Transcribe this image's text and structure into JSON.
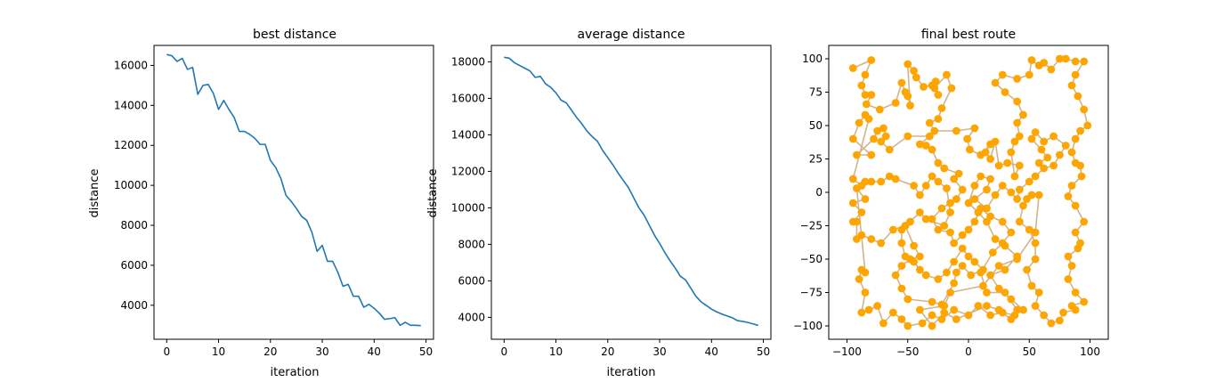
{
  "figure": {
    "background": "#ffffff"
  },
  "chart_data": [
    {
      "type": "line",
      "title": "best distance",
      "xlabel": "iteration",
      "ylabel": "distance",
      "xlim": [
        -2.45,
        51.45
      ],
      "ylim": [
        2300,
        17000
      ],
      "xticks": [
        0,
        10,
        20,
        30,
        40,
        50
      ],
      "yticks": [
        4000,
        6000,
        8000,
        10000,
        12000,
        14000,
        16000
      ],
      "grid": false,
      "color": "#1f77b4",
      "series": [
        {
          "x": [
            0,
            1,
            2,
            3,
            4,
            5,
            6,
            7,
            8,
            9,
            10,
            11,
            12,
            13,
            14,
            15,
            16,
            17,
            18,
            19,
            20,
            21,
            22,
            23,
            24,
            25,
            26,
            27,
            28,
            29,
            30,
            31,
            32,
            33,
            34,
            35,
            36,
            37,
            38,
            39,
            40,
            41,
            42,
            43,
            44,
            45,
            46,
            47,
            48,
            49
          ],
          "values": [
            16550,
            16480,
            16200,
            16350,
            15800,
            15900,
            14550,
            15000,
            15050,
            14600,
            13800,
            14250,
            13800,
            13400,
            12700,
            12700,
            12550,
            12350,
            12050,
            12050,
            11250,
            10900,
            10350,
            9500,
            9200,
            8850,
            8450,
            8250,
            7650,
            6700,
            7000,
            6200,
            6200,
            5650,
            4950,
            5050,
            4450,
            4450,
            3900,
            4050,
            3850,
            3600,
            3300,
            3330,
            3380,
            3000,
            3150,
            3000,
            3000,
            2980
          ]
        }
      ]
    },
    {
      "type": "line",
      "title": "average distance",
      "xlabel": "iteration",
      "ylabel": "distance",
      "xlim": [
        -2.45,
        51.45
      ],
      "ylim": [
        2800,
        18900
      ],
      "xticks": [
        0,
        10,
        20,
        30,
        40,
        50
      ],
      "yticks": [
        4000,
        6000,
        8000,
        10000,
        12000,
        14000,
        16000,
        18000
      ],
      "grid": false,
      "color": "#1f77b4",
      "series": [
        {
          "x": [
            0,
            1,
            2,
            3,
            4,
            5,
            6,
            7,
            8,
            9,
            10,
            11,
            12,
            13,
            14,
            15,
            16,
            17,
            18,
            19,
            20,
            21,
            22,
            23,
            24,
            25,
            26,
            27,
            28,
            29,
            30,
            31,
            32,
            33,
            34,
            35,
            36,
            37,
            38,
            39,
            40,
            41,
            42,
            43,
            44,
            45,
            46,
            47,
            48,
            49
          ],
          "values": [
            18250,
            18200,
            17950,
            17800,
            17650,
            17500,
            17150,
            17200,
            16800,
            16600,
            16300,
            15900,
            15750,
            15350,
            14950,
            14600,
            14200,
            13900,
            13650,
            13150,
            12750,
            12350,
            11900,
            11500,
            11100,
            10550,
            10000,
            9600,
            9050,
            8500,
            8050,
            7550,
            7100,
            6700,
            6250,
            6050,
            5600,
            5150,
            4850,
            4650,
            4450,
            4300,
            4180,
            4080,
            3980,
            3820,
            3780,
            3720,
            3640,
            3560
          ]
        }
      ]
    },
    {
      "type": "scatter",
      "title": "final best route",
      "xlabel": "",
      "ylabel": "",
      "xlim": [
        -115,
        115
      ],
      "ylim": [
        -110,
        110
      ],
      "xticks": [
        -100,
        -50,
        0,
        50,
        100
      ],
      "yticks": [
        -100,
        -75,
        -50,
        -25,
        0,
        25,
        50,
        75,
        100
      ],
      "grid": false,
      "point_color": "#ffa500",
      "route_color": "#d2b48c",
      "route": [
        [
          -95,
          93
        ],
        [
          -80,
          99
        ],
        [
          -85,
          88
        ],
        [
          -88,
          80
        ],
        [
          -85,
          73
        ],
        [
          -80,
          73
        ],
        [
          -84,
          66
        ],
        [
          -73,
          62
        ],
        [
          -60,
          67
        ],
        [
          -55,
          82
        ],
        [
          -52,
          75
        ],
        [
          -50,
          72
        ],
        [
          -48,
          65
        ],
        [
          -50,
          96
        ],
        [
          -45,
          91
        ],
        [
          -43,
          86
        ],
        [
          -37,
          79
        ],
        [
          -30,
          80
        ],
        [
          -27,
          83
        ],
        [
          -25,
          73
        ],
        [
          -28,
          78
        ],
        [
          -18,
          88
        ],
        [
          -14,
          78
        ],
        [
          -22,
          63
        ],
        [
          -25,
          55
        ],
        [
          -32,
          52
        ],
        [
          -28,
          46
        ],
        [
          -10,
          46
        ],
        [
          5,
          48
        ],
        [
          -1,
          40
        ],
        [
          1,
          32
        ],
        [
          10,
          28
        ],
        [
          18,
          36
        ],
        [
          14,
          30
        ],
        [
          18,
          25
        ],
        [
          22,
          38
        ],
        [
          25,
          20
        ],
        [
          32,
          22
        ],
        [
          42,
          20
        ],
        [
          38,
          12
        ],
        [
          35,
          30
        ],
        [
          38,
          38
        ],
        [
          42,
          42
        ],
        [
          40,
          52
        ],
        [
          45,
          58
        ],
        [
          40,
          68
        ],
        [
          30,
          75
        ],
        [
          22,
          82
        ],
        [
          28,
          88
        ],
        [
          40,
          85
        ],
        [
          50,
          88
        ],
        [
          52,
          99
        ],
        [
          58,
          95
        ],
        [
          62,
          97
        ],
        [
          68,
          92
        ],
        [
          75,
          100
        ],
        [
          80,
          100
        ],
        [
          88,
          98
        ],
        [
          95,
          98
        ],
        [
          88,
          88
        ],
        [
          85,
          80
        ],
        [
          90,
          72
        ],
        [
          95,
          62
        ],
        [
          98,
          50
        ],
        [
          92,
          46
        ],
        [
          88,
          40
        ],
        [
          85,
          30
        ],
        [
          88,
          22
        ],
        [
          92,
          20
        ],
        [
          93,
          12
        ],
        [
          85,
          5
        ],
        [
          82,
          -3
        ],
        [
          88,
          -10
        ],
        [
          95,
          -22
        ],
        [
          88,
          -30
        ],
        [
          92,
          -38
        ],
        [
          90,
          -42
        ],
        [
          82,
          -48
        ],
        [
          85,
          -55
        ],
        [
          82,
          -65
        ],
        [
          88,
          -75
        ],
        [
          95,
          -82
        ],
        [
          85,
          -85
        ],
        [
          88,
          -88
        ],
        [
          78,
          -90
        ],
        [
          75,
          -96
        ],
        [
          68,
          -98
        ],
        [
          62,
          -92
        ],
        [
          55,
          -85
        ],
        [
          58,
          -75
        ],
        [
          52,
          -70
        ],
        [
          48,
          -58
        ],
        [
          55,
          -50
        ],
        [
          55,
          -38
        ],
        [
          50,
          -28
        ],
        [
          42,
          -22
        ],
        [
          45,
          -10
        ],
        [
          48,
          -5
        ],
        [
          52,
          -2
        ],
        [
          58,
          -2
        ],
        [
          55,
          -30
        ],
        [
          40,
          -50
        ],
        [
          25,
          -55
        ],
        [
          12,
          -70
        ],
        [
          -15,
          -75
        ],
        [
          -20,
          -85
        ],
        [
          -40,
          -88
        ],
        [
          -30,
          -100
        ],
        [
          -20,
          -90
        ],
        [
          -10,
          -95
        ],
        [
          15,
          -85
        ],
        [
          25,
          -88
        ],
        [
          35,
          -95
        ],
        [
          40,
          -88
        ],
        [
          30,
          -75
        ],
        [
          15,
          -75
        ],
        [
          10,
          -60
        ],
        [
          20,
          -45
        ],
        [
          28,
          -38
        ],
        [
          35,
          -30
        ],
        [
          28,
          -22
        ],
        [
          18,
          -18
        ],
        [
          10,
          -12
        ],
        [
          5,
          -22
        ],
        [
          0,
          -28
        ],
        [
          -5,
          -32
        ],
        [
          -12,
          -38
        ],
        [
          -15,
          -30
        ],
        [
          -25,
          -28
        ],
        [
          -30,
          -20
        ],
        [
          -22,
          -12
        ],
        [
          -15,
          -8
        ],
        [
          -10,
          -5
        ],
        [
          -5,
          2
        ],
        [
          -12,
          10
        ],
        [
          -8,
          14
        ],
        [
          -20,
          18
        ],
        [
          -25,
          22
        ],
        [
          -30,
          32
        ],
        [
          -35,
          35
        ],
        [
          -40,
          36
        ],
        [
          -32,
          42
        ],
        [
          -50,
          42
        ],
        [
          -65,
          32
        ],
        [
          -72,
          38
        ],
        [
          -68,
          42
        ],
        [
          -70,
          48
        ],
        [
          -75,
          46
        ],
        [
          -78,
          40
        ],
        [
          -92,
          28
        ],
        [
          -80,
          28
        ],
        [
          -95,
          40
        ],
        [
          -90,
          52
        ],
        [
          -85,
          58
        ],
        [
          -82,
          55
        ],
        [
          -95,
          10
        ],
        [
          -88,
          5
        ],
        [
          -85,
          8
        ],
        [
          -80,
          8
        ],
        [
          -72,
          8
        ],
        [
          -65,
          12
        ],
        [
          -60,
          10
        ],
        [
          -45,
          5
        ],
        [
          -40,
          -2
        ],
        [
          -35,
          5
        ],
        [
          -30,
          12
        ],
        [
          -25,
          8
        ],
        [
          -18,
          3
        ],
        [
          -15,
          -15
        ],
        [
          -20,
          -25
        ],
        [
          -35,
          -20
        ],
        [
          -40,
          -15
        ],
        [
          -48,
          -22
        ],
        [
          -52,
          -25
        ],
        [
          -55,
          -28
        ],
        [
          -55,
          -38
        ],
        [
          -52,
          -48
        ],
        [
          -45,
          -52
        ],
        [
          -40,
          -58
        ],
        [
          -35,
          -62
        ],
        [
          -25,
          -65
        ],
        [
          -18,
          -60
        ],
        [
          -12,
          -52
        ],
        [
          -5,
          -42
        ],
        [
          0,
          -48
        ],
        [
          5,
          -52
        ],
        [
          12,
          -58
        ],
        [
          2,
          -62
        ],
        [
          -5,
          -55
        ],
        [
          -10,
          -60
        ],
        [
          -12,
          -68
        ],
        [
          -22,
          -84
        ],
        [
          -30,
          -82
        ],
        [
          -50,
          -80
        ],
        [
          -55,
          -72
        ],
        [
          -60,
          -62
        ],
        [
          -55,
          -55
        ],
        [
          -48,
          -50
        ],
        [
          -40,
          -48
        ],
        [
          -45,
          -40
        ],
        [
          -52,
          -25
        ],
        [
          -62,
          -28
        ],
        [
          -72,
          -38
        ],
        [
          -80,
          -35
        ],
        [
          -88,
          -32
        ],
        [
          -92,
          -35
        ],
        [
          -92,
          -22
        ],
        [
          -95,
          -22
        ],
        [
          -88,
          -15
        ],
        [
          -95,
          -8
        ],
        [
          -85,
          -5
        ],
        [
          -92,
          3
        ],
        [
          -85,
          -60
        ],
        [
          -88,
          -58
        ],
        [
          -90,
          -65
        ],
        [
          -85,
          -75
        ],
        [
          -88,
          -90
        ],
        [
          -82,
          -88
        ],
        [
          -75,
          -85
        ],
        [
          -70,
          -98
        ],
        [
          -62,
          -90
        ],
        [
          -55,
          -95
        ],
        [
          -50,
          -100
        ],
        [
          -38,
          -98
        ],
        [
          -30,
          -92
        ],
        [
          -22,
          -95
        ],
        [
          -12,
          -88
        ],
        [
          0,
          -92
        ],
        [
          8,
          -85
        ],
        [
          18,
          -92
        ],
        [
          28,
          -90
        ],
        [
          38,
          -92
        ],
        [
          45,
          -88
        ],
        [
          35,
          -80
        ],
        [
          25,
          -72
        ],
        [
          18,
          -62
        ],
        [
          30,
          -58
        ],
        [
          40,
          -48
        ],
        [
          30,
          -40
        ],
        [
          22,
          -35
        ],
        [
          15,
          -22
        ],
        [
          8,
          -15
        ],
        [
          0,
          -8
        ],
        [
          5,
          5
        ],
        [
          10,
          12
        ],
        [
          18,
          10
        ],
        [
          15,
          2
        ],
        [
          5,
          -5
        ],
        [
          15,
          -12
        ],
        [
          22,
          -2
        ],
        [
          28,
          5
        ],
        [
          35,
          0
        ],
        [
          40,
          -5
        ],
        [
          42,
          2
        ],
        [
          50,
          8
        ],
        [
          55,
          12
        ],
        [
          62,
          18
        ],
        [
          70,
          20
        ],
        [
          75,
          28
        ],
        [
          80,
          35
        ],
        [
          70,
          42
        ],
        [
          62,
          38
        ],
        [
          55,
          45
        ],
        [
          52,
          40
        ],
        [
          60,
          32
        ],
        [
          65,
          26
        ],
        [
          58,
          22
        ]
      ]
    }
  ]
}
